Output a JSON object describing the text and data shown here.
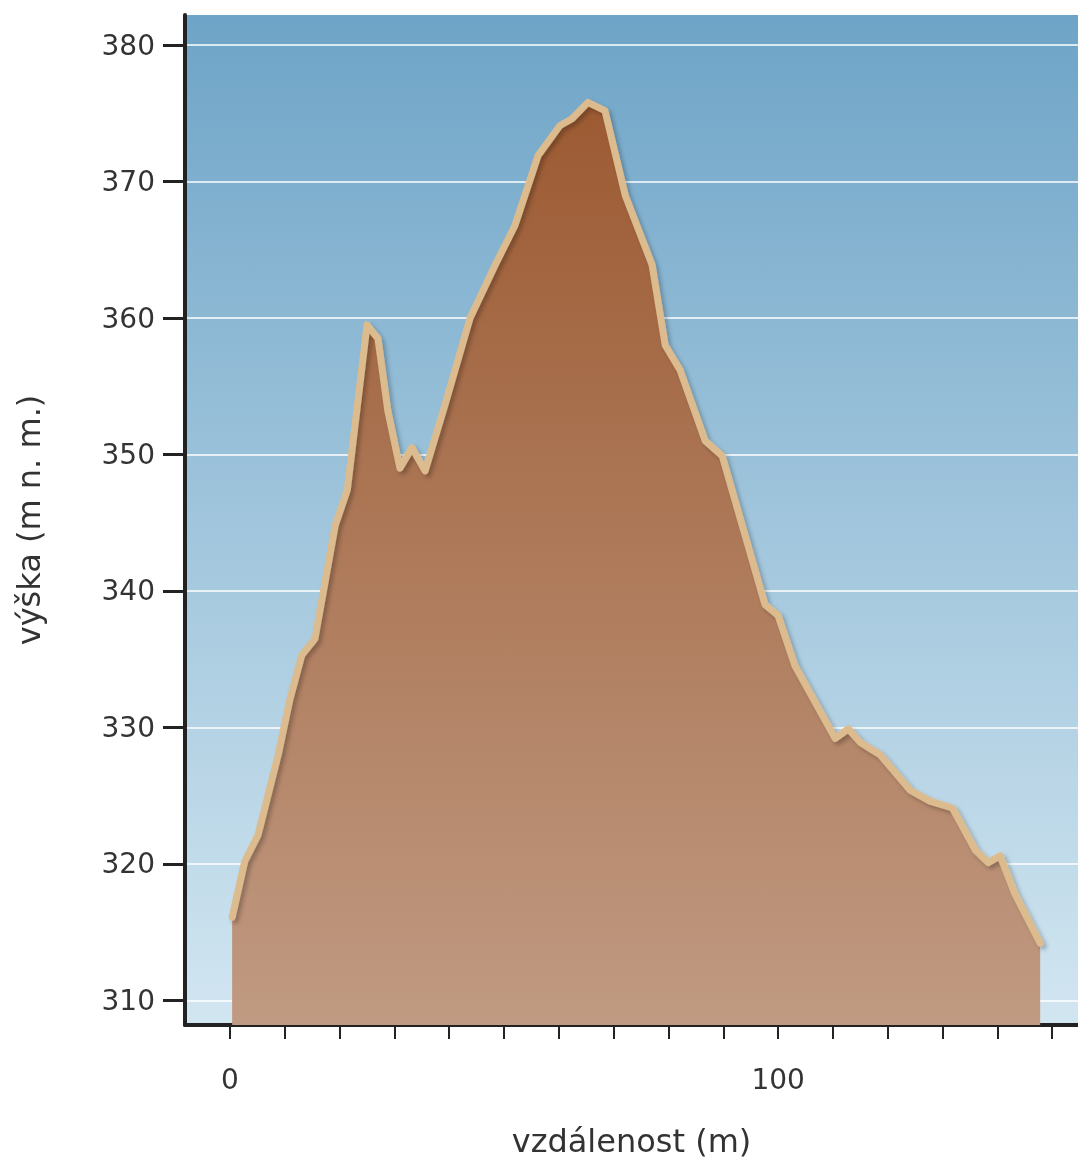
{
  "chart_data": {
    "type": "area",
    "xlabel": "vzdálenost (m)",
    "ylabel": "výška (m n. m.)",
    "x": [
      0.4,
      2.7,
      5.1,
      8.8,
      10.9,
      13.1,
      15.5,
      19.2,
      21.4,
      25.0,
      27.0,
      28.8,
      31.0,
      33.2,
      35.6,
      39.2,
      43.8,
      48.4,
      52.0,
      56.2,
      60.2,
      62.4,
      65.3,
      68.4,
      72.1,
      77.0,
      79.4,
      82.1,
      86.7,
      89.8,
      97.6,
      100.0,
      103.1,
      110.4,
      112.8,
      115.0,
      118.6,
      124.1,
      127.7,
      131.8,
      136.0,
      138.3,
      140.5,
      143.2,
      147.8
    ],
    "series": [
      {
        "color": "#9c5a32",
        "values": [
          316.1,
          320.2,
          322.1,
          328.0,
          332.0,
          335.3,
          336.5,
          344.8,
          347.4,
          359.5,
          358.5,
          353.2,
          349.0,
          350.5,
          348.8,
          353.6,
          360.0,
          363.9,
          366.8,
          371.9,
          374.1,
          374.6,
          375.8,
          375.2,
          369.0,
          363.9,
          358.0,
          356.2,
          351.0,
          349.9,
          339.0,
          338.2,
          334.5,
          329.2,
          329.9,
          328.9,
          328.0,
          325.4,
          324.6,
          324.1,
          321.0,
          320.1,
          320.6,
          317.8,
          314.2
        ]
      }
    ],
    "xlim": [
      -8.2,
      154.7
    ],
    "ylim": [
      308.2,
      382.2
    ],
    "xticks": [
      0,
      {
        "value": 10,
        "label": null
      },
      {
        "value": 20,
        "label": null
      },
      {
        "value": 30,
        "label": null
      },
      {
        "value": 40,
        "label": null
      },
      {
        "value": 50,
        "label": null
      },
      {
        "value": 60,
        "label": null
      },
      {
        "value": 70,
        "label": null
      },
      {
        "value": 80,
        "label": null
      },
      {
        "value": 90,
        "label": null
      },
      100,
      {
        "value": 110,
        "label": null
      },
      {
        "value": 120,
        "label": null
      },
      {
        "value": 130,
        "label": null
      },
      {
        "value": 140,
        "label": null
      },
      {
        "value": 150,
        "label": null
      }
    ],
    "yticks": [
      310,
      320,
      330,
      340,
      350,
      360,
      370,
      380
    ],
    "grid": "y",
    "marker": "none",
    "line_style": "solid"
  }
}
